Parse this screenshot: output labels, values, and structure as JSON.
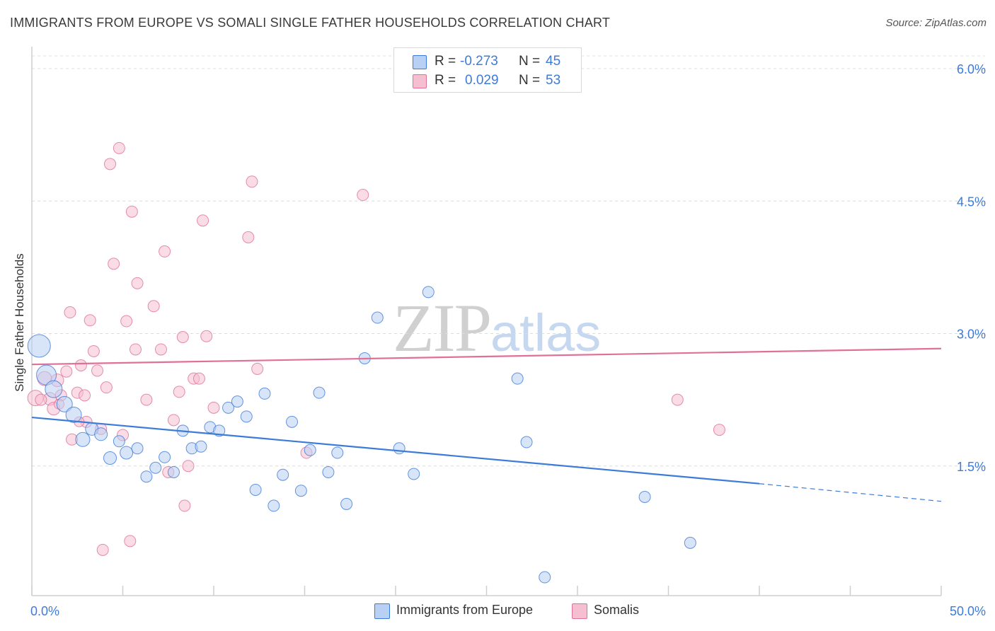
{
  "header": {
    "title": "IMMIGRANTS FROM EUROPE VS SOMALI SINGLE FATHER HOUSEHOLDS CORRELATION CHART",
    "source": "Source: ZipAtlas.com"
  },
  "watermark": {
    "zip": "ZIP",
    "atlas": "atlas"
  },
  "stats_legend": {
    "rows": [
      {
        "r_label": "R =",
        "r_value": "-0.273",
        "n_label": "N =",
        "n_value": "45"
      },
      {
        "r_label": "R =",
        "r_value": "0.029",
        "n_label": "N =",
        "n_value": "53"
      }
    ]
  },
  "chart_data": {
    "type": "scatter",
    "title": "IMMIGRANTS FROM EUROPE VS SOMALI SINGLE FATHER HOUSEHOLDS CORRELATION CHART",
    "xlabel": "",
    "ylabel": "Single Father Households",
    "xlim": [
      0,
      50
    ],
    "ylim": [
      0,
      6.2
    ],
    "x_tick_labels": [
      "0.0%",
      "50.0%"
    ],
    "y_ticks": [
      1.5,
      3.0,
      4.5,
      6.0
    ],
    "y_tick_labels": [
      "1.5%",
      "3.0%",
      "4.5%",
      "6.0%"
    ],
    "grid": "horizontal dashed",
    "legend_position": "bottom-center",
    "colors": {
      "europe": "#3d7bd9",
      "europe_fill": "#b8d0f3",
      "somali": "#e07098",
      "somali_fill": "#f6bfd1",
      "tick_label": "#3d7bd9"
    },
    "series": [
      {
        "name": "Immigrants from Europe",
        "r": -0.273,
        "n": 45,
        "trend": {
          "x0": 0,
          "y0": 2.05,
          "x1": 40,
          "y1": 1.3,
          "dashed_to_x": 50,
          "dashed_to_y": 1.1
        },
        "points": [
          [
            0.4,
            2.86,
            16
          ],
          [
            0.8,
            2.53,
            14
          ],
          [
            1.2,
            2.37,
            12
          ],
          [
            1.8,
            2.2,
            11
          ],
          [
            2.3,
            2.08,
            11
          ],
          [
            2.8,
            1.8,
            10
          ],
          [
            3.3,
            1.92,
            9
          ],
          [
            3.8,
            1.86,
            9
          ],
          [
            4.3,
            1.59,
            9
          ],
          [
            4.8,
            1.78,
            8
          ],
          [
            5.2,
            1.65,
            9
          ],
          [
            5.8,
            1.7,
            8
          ],
          [
            6.3,
            1.38,
            8
          ],
          [
            6.8,
            1.48,
            8
          ],
          [
            7.3,
            1.6,
            8
          ],
          [
            7.8,
            1.43,
            8
          ],
          [
            8.3,
            1.9,
            8
          ],
          [
            8.8,
            1.7,
            8
          ],
          [
            9.3,
            1.72,
            8
          ],
          [
            9.8,
            1.94,
            8
          ],
          [
            10.3,
            1.9,
            8
          ],
          [
            10.8,
            2.16,
            8
          ],
          [
            11.3,
            2.23,
            8
          ],
          [
            11.8,
            2.06,
            8
          ],
          [
            12.3,
            1.23,
            8
          ],
          [
            12.8,
            2.32,
            8
          ],
          [
            13.3,
            1.05,
            8
          ],
          [
            13.8,
            1.4,
            8
          ],
          [
            14.3,
            2.0,
            8
          ],
          [
            14.8,
            1.22,
            8
          ],
          [
            15.3,
            1.68,
            8
          ],
          [
            15.8,
            2.33,
            8
          ],
          [
            16.3,
            1.43,
            8
          ],
          [
            16.8,
            1.65,
            8
          ],
          [
            17.3,
            1.07,
            8
          ],
          [
            18.3,
            2.72,
            8
          ],
          [
            19.0,
            3.18,
            8
          ],
          [
            20.2,
            1.7,
            8
          ],
          [
            21.0,
            1.41,
            8
          ],
          [
            21.8,
            3.47,
            8
          ],
          [
            26.7,
            2.49,
            8
          ],
          [
            27.2,
            1.77,
            8
          ],
          [
            33.7,
            1.15,
            8
          ],
          [
            36.2,
            0.63,
            8
          ],
          [
            28.2,
            0.24,
            8
          ]
        ]
      },
      {
        "name": "Somalis",
        "r": 0.029,
        "n": 53,
        "trend": {
          "x0": 0,
          "y0": 2.65,
          "x1": 50,
          "y1": 2.83
        },
        "points": [
          [
            0.2,
            2.27,
            11
          ],
          [
            0.7,
            2.49,
            10
          ],
          [
            1.0,
            2.26,
            9
          ],
          [
            1.2,
            2.15,
            9
          ],
          [
            1.4,
            2.47,
            9
          ],
          [
            1.6,
            2.3,
            8
          ],
          [
            1.9,
            2.57,
            8
          ],
          [
            2.1,
            3.24,
            8
          ],
          [
            2.2,
            1.8,
            8
          ],
          [
            2.5,
            2.33,
            8
          ],
          [
            2.7,
            2.64,
            8
          ],
          [
            2.9,
            2.3,
            8
          ],
          [
            3.0,
            2.0,
            8
          ],
          [
            3.2,
            3.15,
            8
          ],
          [
            3.4,
            2.8,
            8
          ],
          [
            3.6,
            2.58,
            8
          ],
          [
            3.8,
            1.92,
            8
          ],
          [
            3.9,
            0.55,
            8
          ],
          [
            4.1,
            2.39,
            8
          ],
          [
            4.3,
            4.92,
            8
          ],
          [
            4.5,
            3.79,
            8
          ],
          [
            4.8,
            5.1,
            8
          ],
          [
            5.0,
            1.85,
            8
          ],
          [
            5.2,
            3.14,
            8
          ],
          [
            5.4,
            0.65,
            8
          ],
          [
            5.5,
            4.38,
            8
          ],
          [
            5.7,
            2.82,
            8
          ],
          [
            5.8,
            3.57,
            8
          ],
          [
            6.3,
            2.25,
            8
          ],
          [
            6.7,
            3.31,
            8
          ],
          [
            7.1,
            2.82,
            8
          ],
          [
            7.3,
            3.93,
            8
          ],
          [
            7.5,
            1.43,
            8
          ],
          [
            7.8,
            2.02,
            8
          ],
          [
            8.1,
            2.34,
            8
          ],
          [
            8.3,
            2.96,
            8
          ],
          [
            8.4,
            1.05,
            8
          ],
          [
            8.6,
            1.5,
            8
          ],
          [
            8.9,
            2.49,
            8
          ],
          [
            9.2,
            2.49,
            8
          ],
          [
            9.4,
            4.28,
            8
          ],
          [
            9.6,
            2.97,
            8
          ],
          [
            10.0,
            2.16,
            8
          ],
          [
            11.9,
            4.09,
            8
          ],
          [
            12.1,
            4.72,
            8
          ],
          [
            12.4,
            2.6,
            8
          ],
          [
            15.1,
            1.65,
            8
          ],
          [
            18.2,
            4.57,
            8
          ],
          [
            35.5,
            2.25,
            8
          ],
          [
            37.8,
            1.91,
            8
          ],
          [
            2.6,
            2.0,
            7
          ],
          [
            1.5,
            2.2,
            7
          ],
          [
            0.5,
            2.25,
            8
          ]
        ]
      }
    ]
  }
}
